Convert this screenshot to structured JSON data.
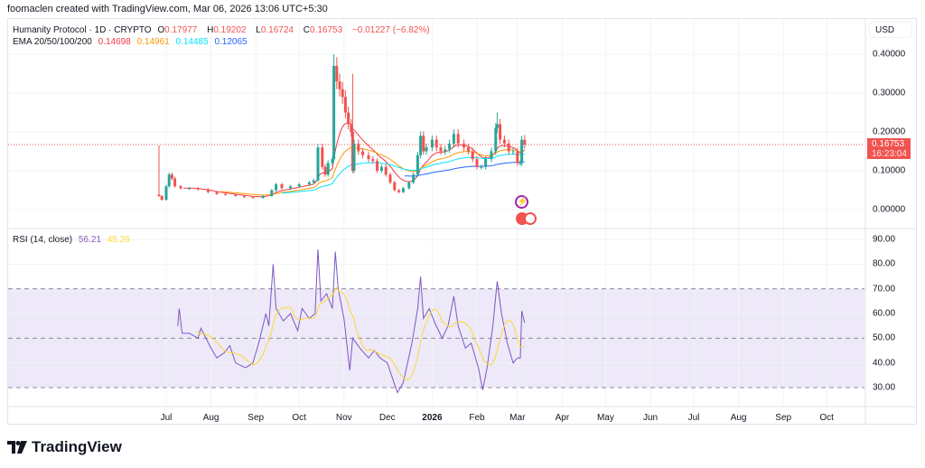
{
  "credit": "foomaclen created with TradingView.com, Mar 06, 2026 13:06 UTC+5:30",
  "legend": {
    "symbol": "Humanity Protocol · 1D · CRYPTO",
    "o_label": "O",
    "o": "0.17977",
    "h_label": "H",
    "h": "0.19202",
    "l_label": "L",
    "l": "0.16724",
    "c_label": "C",
    "c": "0.16753",
    "change": "−0.01227 (−6.82%)",
    "ema_label": "EMA 20/50/100/200",
    "ema20": "0.14698",
    "ema50": "0.14961",
    "ema100": "0.14485",
    "ema200": "0.12065",
    "rsi_label": "RSI (14, close)",
    "rsi": "56.21",
    "rsi_ma": "45.26"
  },
  "currency": "USD",
  "last_price": {
    "value": "0.16753",
    "countdown": "16:23:04"
  },
  "colors": {
    "up": "#26a69a",
    "down": "#ef5350",
    "ema20": "#f23645",
    "ema50": "#ff9800",
    "ema100": "#00e5ff",
    "ema200": "#2962ff",
    "rsi": "#7e57c2",
    "rsi_ma": "#fdd835",
    "rsi_band": "#ede9f8"
  },
  "icons": [
    "lightning-event-icon",
    "us-flag-event-icon"
  ],
  "brand": "TradingView",
  "chart_data": [
    {
      "type": "candlestick",
      "title": "Humanity Protocol · 1D · CRYPTO",
      "ylim": [
        0,
        0.4
      ],
      "yticks": [
        "0.40000",
        "0.30000",
        "0.20000",
        "0.10000",
        "0.00000"
      ],
      "ytick_values": [
        0.4,
        0.3,
        0.2,
        0.1,
        0.0
      ],
      "grid": true,
      "series": [
        {
          "d": "2025-06-26",
          "c": 0.035,
          "h": 0.165
        },
        {
          "d": "2025-06-28",
          "c": 0.025
        },
        {
          "d": "2025-07-01",
          "c": 0.06
        },
        {
          "d": "2025-07-03",
          "c": 0.09
        },
        {
          "d": "2025-07-05",
          "c": 0.08
        },
        {
          "d": "2025-07-07",
          "c": 0.06
        },
        {
          "d": "2025-07-11",
          "c": 0.055
        },
        {
          "d": "2025-07-17",
          "c": 0.055
        },
        {
          "d": "2025-07-23",
          "c": 0.052
        },
        {
          "d": "2025-07-30",
          "c": 0.045
        },
        {
          "d": "2025-08-05",
          "c": 0.04
        },
        {
          "d": "2025-08-11",
          "c": 0.038
        },
        {
          "d": "2025-08-18",
          "c": 0.035
        },
        {
          "d": "2025-08-24",
          "c": 0.032
        },
        {
          "d": "2025-08-30",
          "c": 0.03
        },
        {
          "d": "2025-09-06",
          "c": 0.035
        },
        {
          "d": "2025-09-12",
          "c": 0.05
        },
        {
          "d": "2025-09-15",
          "c": 0.065
        },
        {
          "d": "2025-09-19",
          "c": 0.055
        },
        {
          "d": "2025-09-25",
          "c": 0.06
        },
        {
          "d": "2025-10-01",
          "c": 0.065
        },
        {
          "d": "2025-10-08",
          "c": 0.07
        },
        {
          "d": "2025-10-11",
          "c": 0.075
        },
        {
          "d": "2025-10-14",
          "c": 0.16
        },
        {
          "d": "2025-10-17",
          "c": 0.11
        },
        {
          "d": "2025-10-19",
          "c": 0.09
        },
        {
          "d": "2025-10-21",
          "c": 0.12
        },
        {
          "d": "2025-10-24",
          "c": 0.13
        },
        {
          "d": "2025-10-25",
          "c": 0.37,
          "h": 0.4
        },
        {
          "d": "2025-10-27",
          "c": 0.33
        },
        {
          "d": "2025-10-29",
          "c": 0.31
        },
        {
          "d": "2025-10-31",
          "c": 0.29
        },
        {
          "d": "2025-11-02",
          "c": 0.25
        },
        {
          "d": "2025-11-04",
          "c": 0.22
        },
        {
          "d": "2025-11-06",
          "c": 0.2
        },
        {
          "d": "2025-11-07",
          "c": 0.1,
          "h": 0.35
        },
        {
          "d": "2025-11-08",
          "c": 0.17
        },
        {
          "d": "2025-11-11",
          "c": 0.15
        },
        {
          "d": "2025-11-14",
          "c": 0.14
        },
        {
          "d": "2025-11-18",
          "c": 0.13
        },
        {
          "d": "2025-11-21",
          "c": 0.125
        },
        {
          "d": "2025-11-24",
          "c": 0.1
        },
        {
          "d": "2025-11-27",
          "c": 0.11
        },
        {
          "d": "2025-11-30",
          "c": 0.09
        },
        {
          "d": "2025-12-03",
          "c": 0.07
        },
        {
          "d": "2025-12-06",
          "c": 0.05
        },
        {
          "d": "2025-12-09",
          "c": 0.045
        },
        {
          "d": "2025-12-12",
          "c": 0.055
        },
        {
          "d": "2025-12-16",
          "c": 0.07
        },
        {
          "d": "2025-12-19",
          "c": 0.09
        },
        {
          "d": "2025-12-22",
          "c": 0.14
        },
        {
          "d": "2025-12-24",
          "c": 0.19
        },
        {
          "d": "2025-12-26",
          "c": 0.15
        },
        {
          "d": "2025-12-28",
          "c": 0.16
        },
        {
          "d": "2026-01-01",
          "c": 0.18
        },
        {
          "d": "2026-01-04",
          "c": 0.16
        },
        {
          "d": "2026-01-07",
          "c": 0.15
        },
        {
          "d": "2026-01-10",
          "c": 0.155
        },
        {
          "d": "2026-01-13",
          "c": 0.17
        },
        {
          "d": "2026-01-16",
          "c": 0.195
        },
        {
          "d": "2026-01-19",
          "c": 0.17
        },
        {
          "d": "2026-01-23",
          "c": 0.16
        },
        {
          "d": "2026-01-26",
          "c": 0.15
        },
        {
          "d": "2026-01-29",
          "c": 0.13
        },
        {
          "d": "2026-02-01",
          "c": 0.11
        },
        {
          "d": "2026-02-04",
          "c": 0.11
        },
        {
          "d": "2026-02-07",
          "c": 0.13
        },
        {
          "d": "2026-02-11",
          "c": 0.15
        },
        {
          "d": "2026-02-14",
          "c": 0.21
        },
        {
          "d": "2026-02-15",
          "c": 0.22,
          "h": 0.25
        },
        {
          "d": "2026-02-17",
          "c": 0.18
        },
        {
          "d": "2026-02-20",
          "c": 0.17
        },
        {
          "d": "2026-02-23",
          "c": 0.15
        },
        {
          "d": "2026-02-26",
          "c": 0.15
        },
        {
          "d": "2026-03-01",
          "c": 0.12
        },
        {
          "d": "2026-03-03",
          "c": 0.12
        },
        {
          "d": "2026-03-04",
          "c": 0.17977,
          "h": 0.19
        },
        {
          "d": "2026-03-06",
          "c": 0.16753,
          "h": 0.19202
        }
      ]
    },
    {
      "type": "line",
      "title": "RSI (14, close)",
      "ylim": [
        25,
        92
      ],
      "yticks": [
        "90.00",
        "80.00",
        "70.00",
        "60.00",
        "50.00",
        "40.00",
        "30.00"
      ],
      "ytick_values": [
        90,
        80,
        70,
        60,
        50,
        40,
        30
      ],
      "bands": [
        30,
        50,
        70
      ],
      "series": [
        {
          "name": "RSI",
          "values": [
            {
              "d": "2025-07-09",
              "v": 55
            },
            {
              "d": "2025-07-10",
              "v": 62
            },
            {
              "d": "2025-07-12",
              "v": 52
            },
            {
              "d": "2025-07-17",
              "v": 52
            },
            {
              "d": "2025-07-23",
              "v": 50
            },
            {
              "d": "2025-07-25",
              "v": 54
            },
            {
              "d": "2025-08-01",
              "v": 46
            },
            {
              "d": "2025-08-05",
              "v": 42
            },
            {
              "d": "2025-08-10",
              "v": 44
            },
            {
              "d": "2025-08-14",
              "v": 47
            },
            {
              "d": "2025-08-18",
              "v": 40
            },
            {
              "d": "2025-08-25",
              "v": 38
            },
            {
              "d": "2025-08-30",
              "v": 40
            },
            {
              "d": "2025-09-03",
              "v": 48
            },
            {
              "d": "2025-09-08",
              "v": 60
            },
            {
              "d": "2025-09-10",
              "v": 55
            },
            {
              "d": "2025-09-13",
              "v": 80
            },
            {
              "d": "2025-09-15",
              "v": 62
            },
            {
              "d": "2025-09-20",
              "v": 57
            },
            {
              "d": "2025-09-25",
              "v": 60
            },
            {
              "d": "2025-09-30",
              "v": 53
            },
            {
              "d": "2025-10-03",
              "v": 62
            },
            {
              "d": "2025-10-08",
              "v": 58
            },
            {
              "d": "2025-10-12",
              "v": 60
            },
            {
              "d": "2025-10-14",
              "v": 86
            },
            {
              "d": "2025-10-16",
              "v": 65
            },
            {
              "d": "2025-10-20",
              "v": 68
            },
            {
              "d": "2025-10-24",
              "v": 62
            },
            {
              "d": "2025-10-26",
              "v": 85
            },
            {
              "d": "2025-10-28",
              "v": 70
            },
            {
              "d": "2025-11-01",
              "v": 58
            },
            {
              "d": "2025-11-05",
              "v": 37
            },
            {
              "d": "2025-11-07",
              "v": 50
            },
            {
              "d": "2025-11-12",
              "v": 46
            },
            {
              "d": "2025-11-18",
              "v": 42
            },
            {
              "d": "2025-11-22",
              "v": 45
            },
            {
              "d": "2025-11-26",
              "v": 42
            },
            {
              "d": "2025-12-01",
              "v": 40
            },
            {
              "d": "2025-12-05",
              "v": 33
            },
            {
              "d": "2025-12-08",
              "v": 28
            },
            {
              "d": "2025-12-12",
              "v": 32
            },
            {
              "d": "2025-12-18",
              "v": 48
            },
            {
              "d": "2025-12-22",
              "v": 62
            },
            {
              "d": "2025-12-24",
              "v": 75
            },
            {
              "d": "2025-12-26",
              "v": 58
            },
            {
              "d": "2025-12-30",
              "v": 62
            },
            {
              "d": "2026-01-03",
              "v": 56
            },
            {
              "d": "2026-01-08",
              "v": 50
            },
            {
              "d": "2026-01-12",
              "v": 55
            },
            {
              "d": "2026-01-16",
              "v": 67
            },
            {
              "d": "2026-01-19",
              "v": 55
            },
            {
              "d": "2026-01-24",
              "v": 46
            },
            {
              "d": "2026-01-28",
              "v": 48
            },
            {
              "d": "2026-02-02",
              "v": 38
            },
            {
              "d": "2026-02-05",
              "v": 29
            },
            {
              "d": "2026-02-08",
              "v": 38
            },
            {
              "d": "2026-02-12",
              "v": 55
            },
            {
              "d": "2026-02-15",
              "v": 73
            },
            {
              "d": "2026-02-18",
              "v": 60
            },
            {
              "d": "2026-02-22",
              "v": 48
            },
            {
              "d": "2026-02-26",
              "v": 40
            },
            {
              "d": "2026-03-01",
              "v": 42
            },
            {
              "d": "2026-03-03",
              "v": 42
            },
            {
              "d": "2026-03-04",
              "v": 61
            },
            {
              "d": "2026-03-06",
              "v": 56.21
            }
          ]
        }
      ]
    }
  ],
  "xticks": [
    {
      "label": "Jul",
      "d": "2025-07-01"
    },
    {
      "label": "Aug",
      "d": "2025-08-01"
    },
    {
      "label": "Sep",
      "d": "2025-09-01"
    },
    {
      "label": "Oct",
      "d": "2025-10-01"
    },
    {
      "label": "Nov",
      "d": "2025-11-01"
    },
    {
      "label": "Dec",
      "d": "2025-12-01"
    },
    {
      "label": "2026",
      "d": "2026-01-01",
      "bold": true
    },
    {
      "label": "Feb",
      "d": "2026-02-01"
    },
    {
      "label": "Mar",
      "d": "2026-03-01"
    },
    {
      "label": "Apr",
      "d": "2026-04-01"
    },
    {
      "label": "May",
      "d": "2026-05-01"
    },
    {
      "label": "Jun",
      "d": "2026-06-01"
    },
    {
      "label": "Jul",
      "d": "2026-07-01"
    },
    {
      "label": "Aug",
      "d": "2026-08-01"
    },
    {
      "label": "Sep",
      "d": "2026-09-01"
    },
    {
      "label": "Oct",
      "d": "2026-10-01"
    }
  ]
}
